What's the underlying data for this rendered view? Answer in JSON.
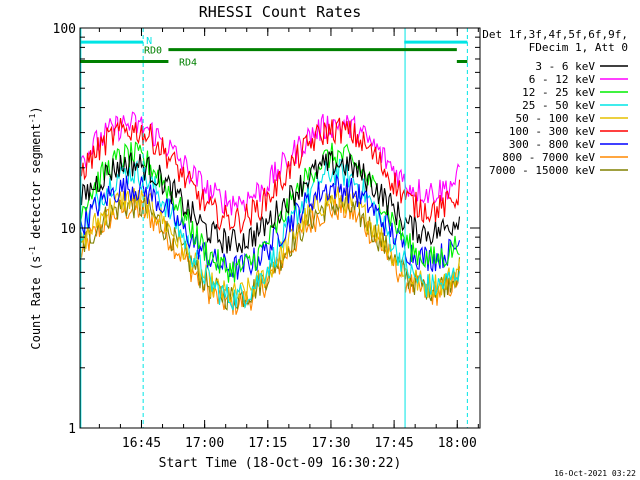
{
  "chart_data": {
    "type": "line",
    "title": "RHESSI Count Rates",
    "xlabel": "Start Time (18-Oct-09 16:30:22)",
    "ylabel_main": "Count Rate (s",
    "ylabel_sup": "-1",
    "ylabel_mid": " detector segment",
    "ylabel_sup2": "-1",
    "ylabel_end": ")",
    "y_scale": "log",
    "ylim": [
      1,
      100
    ],
    "xlim_minutes": [
      0,
      95
    ],
    "x_ticks": [
      {
        "label": "16:45",
        "minute": 14.6
      },
      {
        "label": "17:00",
        "minute": 29.6
      },
      {
        "label": "17:15",
        "minute": 44.6
      },
      {
        "label": "17:30",
        "minute": 59.6
      },
      {
        "label": "17:45",
        "minute": 74.6
      },
      {
        "label": "18:00",
        "minute": 89.6
      }
    ],
    "y_ticks": [
      {
        "label": "1",
        "value": 1
      },
      {
        "label": "10",
        "value": 10
      },
      {
        "label": "100",
        "value": 100
      }
    ],
    "legend_header": [
      "Det 1f,3f,4f,5f,6f,9f,",
      "FDecim 1, Att 0"
    ],
    "series": [
      {
        "name": "3 - 6 keV",
        "color": "#000000",
        "peak": 21,
        "trough": 8.5
      },
      {
        "name": "6 - 12 keV",
        "color": "#ff00ff",
        "peak": 33,
        "trough": 13.5
      },
      {
        "name": "12 - 25 keV",
        "color": "#00ee00",
        "peak": 23,
        "trough": 6.2
      },
      {
        "name": "25 - 50 keV",
        "color": "#00e5e5",
        "peak": 19,
        "trough": 4.5
      },
      {
        "name": "50 - 100 keV",
        "color": "#e5c000",
        "peak": 14,
        "trough": 4.6
      },
      {
        "name": "100 - 300 keV",
        "color": "#ff0000",
        "peak": 31,
        "trough": 11
      },
      {
        "name": "300 - 800 keV",
        "color": "#0000ff",
        "peak": 16,
        "trough": 6.3
      },
      {
        "name": "800 - 7000 keV",
        "color": "#ff8800",
        "peak": 12.5,
        "trough": 4.2
      },
      {
        "name": "7000 - 15000 keV",
        "color": "#808000",
        "peak": 13,
        "trough": 4.5
      }
    ],
    "flags": [
      {
        "label": "N",
        "color": "#00e5e5",
        "y_value": 85,
        "segments": [
          [
            0,
            15
          ],
          [
            77,
            92
          ]
        ]
      },
      {
        "label": "RD0",
        "color": "#008000",
        "y_value": 78,
        "segments": [
          [
            21,
            89.5
          ]
        ]
      },
      {
        "label": "RD4",
        "color": "#008000",
        "y_value": 68,
        "segments": [
          [
            0,
            21
          ],
          [
            89.5,
            92
          ]
        ]
      }
    ],
    "vertical_markers": [
      {
        "minute": 0.2,
        "style": "solid",
        "color": "#00e5e5"
      },
      {
        "minute": 15,
        "style": "dashed",
        "color": "#00e5e5"
      },
      {
        "minute": 77.2,
        "style": "solid",
        "color": "#00e5e5"
      },
      {
        "minute": 92,
        "style": "dashed",
        "color": "#00e5e5"
      }
    ],
    "timestamp": "16-Oct-2021 03:22"
  }
}
